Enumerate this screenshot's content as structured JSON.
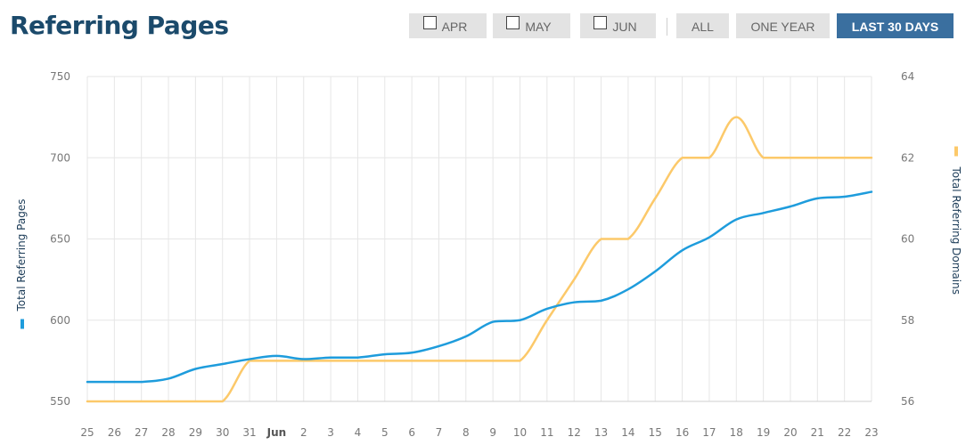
{
  "header": {
    "title": "Referring Pages"
  },
  "toolbar": {
    "month_buttons": [
      {
        "label": "APR",
        "checked": false
      },
      {
        "label": "MAY",
        "checked": false
      },
      {
        "label": "JUN",
        "checked": false
      }
    ],
    "range_buttons": [
      {
        "label": "ALL"
      },
      {
        "label": "ONE YEAR"
      },
      {
        "label": "LAST 30 DAYS",
        "active": true
      }
    ]
  },
  "colors": {
    "pages": "#1e9cdc",
    "domains": "#fcc96a",
    "title": "#1b4a6b",
    "active_button": "#3a6f9f"
  },
  "chart_data": {
    "type": "line",
    "x": [
      "25",
      "26",
      "27",
      "28",
      "29",
      "30",
      "31",
      "Jun",
      "2",
      "3",
      "4",
      "5",
      "6",
      "7",
      "8",
      "9",
      "10",
      "11",
      "12",
      "13",
      "14",
      "15",
      "16",
      "17",
      "18",
      "19",
      "20",
      "21",
      "22",
      "23"
    ],
    "x_bold": [
      "Jun"
    ],
    "series": [
      {
        "name": "Total Referring Pages",
        "axis": "left",
        "color": "#1e9cdc",
        "values": [
          562,
          562,
          562,
          564,
          570,
          573,
          576,
          578,
          576,
          577,
          577,
          579,
          580,
          584,
          590,
          599,
          600,
          607,
          611,
          612,
          619,
          630,
          643,
          651,
          662,
          666,
          670,
          675,
          676,
          679
        ]
      },
      {
        "name": "Total Referring Domains",
        "axis": "right",
        "color": "#fcc96a",
        "values": [
          56,
          56,
          56,
          56,
          56,
          56,
          57,
          57,
          57,
          57,
          57,
          57,
          57,
          57,
          57,
          57,
          57,
          58,
          59,
          60,
          60,
          61,
          62,
          62,
          63,
          62,
          62,
          62,
          62,
          62
        ]
      }
    ],
    "y_left": {
      "label": "Total Referring Pages",
      "ticks": [
        "550",
        "600",
        "650",
        "700",
        "750"
      ],
      "ylim": [
        550,
        750
      ]
    },
    "y_right": {
      "label": "Total Referring Domains",
      "ticks": [
        "56",
        "58",
        "60",
        "62",
        "64"
      ],
      "ylim": [
        56,
        64
      ]
    },
    "grid": true
  }
}
